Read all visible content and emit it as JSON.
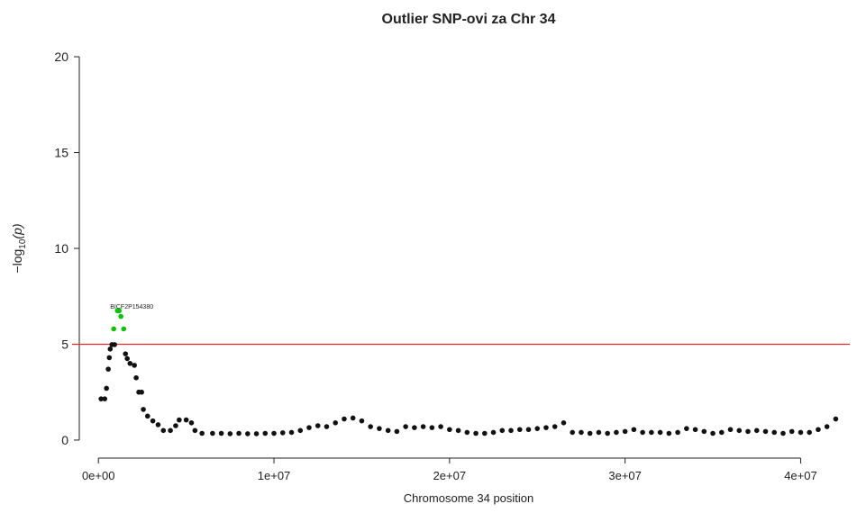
{
  "chart_data": {
    "type": "scatter",
    "title": "Outlier SNP-ovi za Chr 34",
    "x_label": "Chromosome 34 position",
    "y_label_parts": [
      "−log",
      "10",
      "(p)"
    ],
    "xlim": [
      -1500000,
      42800000
    ],
    "ylim": [
      -0.8,
      20.8
    ],
    "xticks": [
      {
        "value": 0,
        "label": "0e+00"
      },
      {
        "value": 10000000,
        "label": "1e+07"
      },
      {
        "value": 20000000,
        "label": "2e+07"
      },
      {
        "value": 30000000,
        "label": "3e+07"
      },
      {
        "value": 40000000,
        "label": "4e+07"
      }
    ],
    "yticks": [
      0,
      5,
      10,
      15,
      20
    ],
    "threshold": 5,
    "threshold_color": "#e8262b",
    "annotations": [
      "BICF2P154380"
    ],
    "series": [
      {
        "color": "#111111",
        "x": [
          150000,
          360000,
          460000,
          560000,
          620000,
          670000,
          770000,
          920000,
          1540000,
          1640000,
          1800000,
          2050000,
          2150000,
          2300000,
          2460000,
          2560000,
          2800000,
          3100000,
          3400000,
          3700000,
          4100000,
          4400000,
          4600000,
          5000000,
          5300000,
          5500000,
          5900000,
          6500000,
          7000000,
          7500000,
          8000000,
          8500000,
          9000000,
          9500000,
          10000000,
          10500000,
          11000000,
          11500000,
          12000000,
          12500000,
          13000000,
          13500000,
          14000000,
          14500000,
          15000000,
          15500000,
          16000000,
          16500000,
          17000000,
          17500000,
          18000000,
          18500000,
          19000000,
          19500000,
          20000000,
          20500000,
          21000000,
          21500000,
          22000000,
          22500000,
          23000000,
          23500000,
          24000000,
          24500000,
          25000000,
          25500000,
          26000000,
          26500000,
          27000000,
          27500000,
          28000000,
          28500000,
          29000000,
          29500000,
          30000000,
          30500000,
          31000000,
          31500000,
          32000000,
          32500000,
          33000000,
          33500000,
          34000000,
          34500000,
          35000000,
          35500000,
          36000000,
          36500000,
          37000000,
          37500000,
          38000000,
          38500000,
          39000000,
          39500000,
          40000000,
          40500000,
          41000000,
          41500000,
          42000000
        ],
        "values": [
          2.15,
          2.15,
          2.7,
          3.7,
          4.3,
          4.75,
          4.98,
          4.98,
          4.5,
          4.25,
          4.0,
          3.9,
          3.25,
          2.5,
          2.5,
          1.6,
          1.25,
          1.0,
          0.8,
          0.5,
          0.5,
          0.75,
          1.05,
          1.05,
          0.9,
          0.5,
          0.35,
          0.35,
          0.35,
          0.33,
          0.35,
          0.33,
          0.33,
          0.35,
          0.35,
          0.38,
          0.4,
          0.5,
          0.65,
          0.75,
          0.7,
          0.9,
          1.1,
          1.15,
          1.0,
          0.7,
          0.6,
          0.5,
          0.45,
          0.7,
          0.65,
          0.7,
          0.65,
          0.7,
          0.55,
          0.5,
          0.4,
          0.35,
          0.35,
          0.4,
          0.5,
          0.5,
          0.55,
          0.55,
          0.6,
          0.65,
          0.7,
          0.9,
          0.4,
          0.4,
          0.35,
          0.4,
          0.35,
          0.4,
          0.45,
          0.55,
          0.4,
          0.4,
          0.4,
          0.35,
          0.4,
          0.6,
          0.55,
          0.45,
          0.35,
          0.4,
          0.55,
          0.5,
          0.45,
          0.5,
          0.45,
          0.4,
          0.35,
          0.45,
          0.4,
          0.4,
          0.55,
          0.7,
          1.1
        ]
      },
      {
        "color": "#00c800",
        "x": [
          870000,
          1080000,
          1180000,
          1280000,
          1440000
        ],
        "values": [
          5.8,
          6.75,
          6.75,
          6.45,
          5.8
        ]
      }
    ]
  }
}
